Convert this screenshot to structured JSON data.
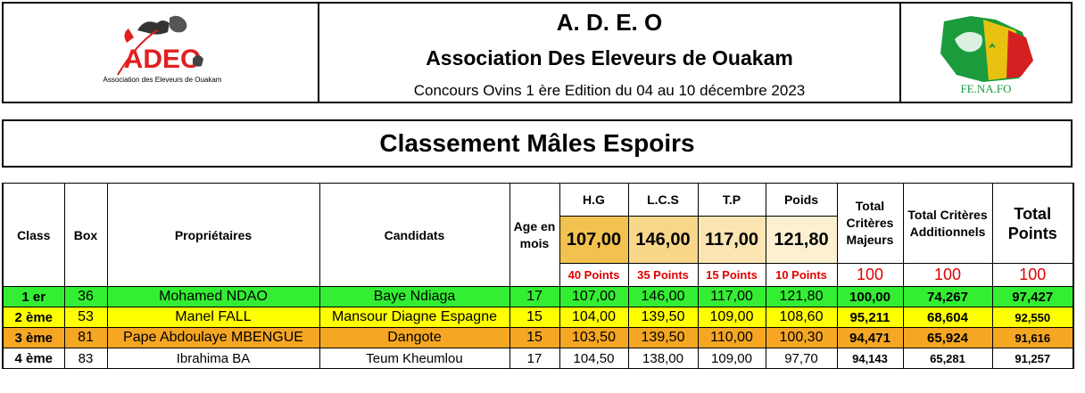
{
  "header": {
    "abbr": "A. D. E. O",
    "name": "Association Des Eleveurs de Ouakam",
    "edition": "Concours Ovins 1 ère Edition du 04 au 10 décembre 2023",
    "left_logo_text": "ADEO",
    "left_logo_caption": "Association des Eleveurs de Ouakam",
    "right_logo_caption": "FE.NA.FO"
  },
  "title": "Classement Mâles Espoirs",
  "columns": {
    "class": "Class",
    "box": "Box",
    "owners": "Propriétaires",
    "candidates": "Candidats",
    "age": "Age en mois",
    "hg": "H.G",
    "lcs": "L.C.S",
    "tp": "T.P",
    "poids": "Poids",
    "total_major": "Total Critères Majeurs",
    "total_additional": "Total Critères Additionnels",
    "total_points": "Total Points"
  },
  "reference": {
    "hg": "107,00",
    "lcs": "146,00",
    "tp": "117,00",
    "poids": "121,80"
  },
  "weights": {
    "hg": "40 Points",
    "lcs": "35 Points",
    "tp": "15 Points",
    "poids": "10 Points",
    "total_major": "100",
    "total_additional": "100",
    "total_points": "100"
  },
  "colors": {
    "first": "#33ee33",
    "second": "#ffff00",
    "third": "#f5a623",
    "fourth": "#ffffff",
    "points_red": "#e00000"
  },
  "rows": [
    {
      "rank": "1 er",
      "box": "36",
      "owner": "Mohamed NDAO",
      "candidate": "Baye Ndiaga",
      "age": "17",
      "hg": "107,00",
      "lcs": "146,00",
      "tp": "117,00",
      "poids": "121,80",
      "total_major": "100,00",
      "total_additional": "74,267",
      "total_points": "97,427"
    },
    {
      "rank": "2 ème",
      "box": "53",
      "owner": "Manel FALL",
      "candidate": "Mansour Diagne Espagne",
      "age": "15",
      "hg": "104,00",
      "lcs": "139,50",
      "tp": "109,00",
      "poids": "108,60",
      "total_major": "95,211",
      "total_additional": "68,604",
      "total_points": "92,550"
    },
    {
      "rank": "3 ème",
      "box": "81",
      "owner": "Pape Abdoulaye MBENGUE",
      "candidate": "Dangote",
      "age": "15",
      "hg": "103,50",
      "lcs": "139,50",
      "tp": "110,00",
      "poids": "100,30",
      "total_major": "94,471",
      "total_additional": "65,924",
      "total_points": "91,616"
    },
    {
      "rank": "4 ème",
      "box": "83",
      "owner": "Ibrahima BA",
      "candidate": "Teum Kheumlou",
      "age": "17",
      "hg": "104,50",
      "lcs": "138,00",
      "tp": "109,00",
      "poids": "97,70",
      "total_major": "94,143",
      "total_additional": "65,281",
      "total_points": "91,257"
    }
  ]
}
